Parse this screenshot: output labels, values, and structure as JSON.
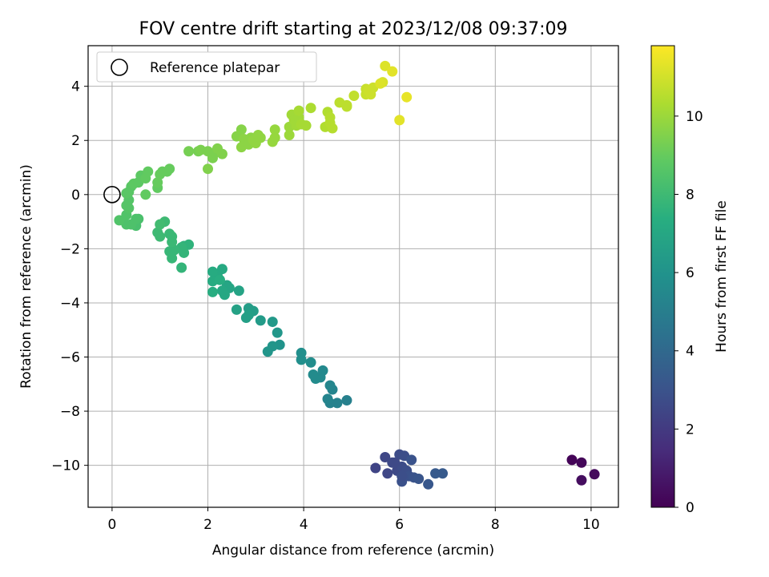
{
  "chart_data": {
    "type": "scatter",
    "title": "FOV centre drift starting at 2023/12/08 09:37:09",
    "xlabel": "Angular distance from reference (arcmin)",
    "ylabel": "Rotation from reference (arcmin)",
    "xlim": [
      -0.5,
      10.57
    ],
    "ylim": [
      -11.55,
      5.5
    ],
    "xticks": [
      0,
      2,
      4,
      6,
      8,
      10
    ],
    "yticks": [
      -10,
      -8,
      -6,
      -4,
      -2,
      0,
      2,
      4
    ],
    "xtick_labels": [
      "0",
      "2",
      "4",
      "6",
      "8",
      "10"
    ],
    "ytick_labels": [
      "−10",
      "−8",
      "−6",
      "−4",
      "−2",
      "0",
      "2",
      "4"
    ],
    "grid": true,
    "legend": {
      "position": "top-left",
      "entries": [
        "Reference platepar"
      ]
    },
    "reference_point": {
      "x": 0,
      "y": 0
    },
    "colorbar": {
      "label": "Hours from first FF file",
      "colormap": "viridis",
      "range": [
        0,
        11.8
      ],
      "ticks": [
        0,
        2,
        4,
        6,
        8,
        10
      ],
      "tick_labels": [
        "0",
        "2",
        "4",
        "6",
        "8",
        "10"
      ]
    },
    "points": [
      [
        9.6,
        -9.8,
        0.1
      ],
      [
        9.8,
        -9.9,
        0.2
      ],
      [
        10.07,
        -10.33,
        0.3
      ],
      [
        9.8,
        -10.55,
        0.4
      ],
      [
        5.5,
        -10.1,
        2.4
      ],
      [
        5.7,
        -9.7,
        2.5
      ],
      [
        5.75,
        -10.3,
        2.5
      ],
      [
        5.85,
        -9.9,
        2.6
      ],
      [
        5.95,
        -10.2,
        2.6
      ],
      [
        6.0,
        -9.6,
        2.7
      ],
      [
        6.05,
        -10.05,
        2.7
      ],
      [
        6.1,
        -9.65,
        2.8
      ],
      [
        6.15,
        -10.2,
        2.8
      ],
      [
        6.05,
        -10.6,
        2.9
      ],
      [
        6.2,
        -10.4,
        2.9
      ],
      [
        6.25,
        -9.8,
        3.0
      ],
      [
        6.3,
        -10.45,
        3.0
      ],
      [
        6.4,
        -10.5,
        3.1
      ],
      [
        6.6,
        -10.7,
        3.2
      ],
      [
        6.75,
        -10.3,
        3.3
      ],
      [
        6.9,
        -10.3,
        3.3
      ],
      [
        5.9,
        -9.9,
        2.6
      ],
      [
        6.05,
        -10.4,
        2.8
      ],
      [
        4.9,
        -7.6,
        5.1
      ],
      [
        4.7,
        -7.7,
        5.2
      ],
      [
        4.55,
        -7.7,
        5.2
      ],
      [
        4.5,
        -7.55,
        5.3
      ],
      [
        4.6,
        -7.2,
        5.3
      ],
      [
        4.55,
        -7.05,
        5.4
      ],
      [
        4.4,
        -6.5,
        5.5
      ],
      [
        4.35,
        -6.75,
        5.5
      ],
      [
        4.25,
        -6.8,
        5.6
      ],
      [
        4.2,
        -6.65,
        5.6
      ],
      [
        4.15,
        -6.2,
        5.7
      ],
      [
        3.95,
        -6.1,
        5.8
      ],
      [
        3.95,
        -5.85,
        5.8
      ],
      [
        3.5,
        -5.55,
        6.0
      ],
      [
        3.35,
        -5.6,
        6.1
      ],
      [
        3.25,
        -5.8,
        6.1
      ],
      [
        3.45,
        -5.1,
        6.2
      ],
      [
        3.35,
        -4.7,
        6.3
      ],
      [
        3.1,
        -4.65,
        6.4
      ],
      [
        2.95,
        -4.3,
        6.5
      ],
      [
        2.85,
        -4.2,
        6.5
      ],
      [
        2.85,
        -4.45,
        6.6
      ],
      [
        2.8,
        -4.55,
        6.6
      ],
      [
        2.6,
        -4.25,
        6.7
      ],
      [
        2.65,
        -3.55,
        6.8
      ],
      [
        2.45,
        -3.45,
        6.9
      ],
      [
        2.4,
        -3.35,
        6.9
      ],
      [
        2.35,
        -3.7,
        7.0
      ],
      [
        2.3,
        -3.55,
        7.0
      ],
      [
        2.3,
        -2.75,
        7.1
      ],
      [
        2.2,
        -3.0,
        7.1
      ],
      [
        2.1,
        -2.85,
        7.2
      ],
      [
        2.1,
        -3.2,
        7.2
      ],
      [
        2.1,
        -3.6,
        7.3
      ],
      [
        2.25,
        -3.15,
        7.3
      ],
      [
        1.6,
        -1.85,
        7.6
      ],
      [
        1.5,
        -1.9,
        7.6
      ],
      [
        1.45,
        -1.95,
        7.7
      ],
      [
        1.45,
        -2.7,
        7.7
      ],
      [
        1.5,
        -2.15,
        7.7
      ],
      [
        1.3,
        -2.05,
        7.8
      ],
      [
        1.25,
        -2.35,
        7.8
      ],
      [
        1.2,
        -2.1,
        7.8
      ],
      [
        1.25,
        -1.75,
        7.9
      ],
      [
        1.2,
        -1.45,
        7.9
      ],
      [
        1.25,
        -1.55,
        7.9
      ],
      [
        1.0,
        -1.55,
        8.0
      ],
      [
        0.95,
        -1.4,
        8.0
      ],
      [
        1.1,
        -1.0,
        8.0
      ],
      [
        1.0,
        -1.1,
        8.1
      ],
      [
        0.55,
        -0.9,
        8.3
      ],
      [
        0.5,
        -1.15,
        8.3
      ],
      [
        0.5,
        -0.9,
        8.4
      ],
      [
        0.4,
        -1.1,
        8.4
      ],
      [
        0.3,
        -1.1,
        8.4
      ],
      [
        0.15,
        -0.95,
        8.5
      ],
      [
        0.3,
        -0.75,
        8.5
      ],
      [
        0.35,
        -0.5,
        8.6
      ],
      [
        0.3,
        -0.4,
        8.6
      ],
      [
        0.35,
        -0.2,
        8.6
      ],
      [
        0.3,
        0.05,
        8.7
      ],
      [
        0.4,
        0.3,
        8.7
      ],
      [
        0.35,
        0.1,
        8.7
      ],
      [
        0.45,
        0.4,
        8.8
      ],
      [
        0.55,
        0.45,
        8.8
      ],
      [
        0.6,
        0.7,
        8.8
      ],
      [
        0.7,
        0.6,
        8.9
      ],
      [
        0.75,
        0.85,
        8.9
      ],
      [
        0.7,
        0.0,
        8.9
      ],
      [
        0.95,
        0.25,
        8.9
      ],
      [
        0.95,
        0.45,
        9.0
      ],
      [
        1.0,
        0.75,
        9.0
      ],
      [
        1.05,
        0.85,
        9.0
      ],
      [
        1.15,
        0.85,
        9.0
      ],
      [
        1.2,
        0.95,
        9.0
      ],
      [
        1.6,
        1.6,
        9.3
      ],
      [
        1.8,
        1.6,
        9.3
      ],
      [
        1.85,
        1.65,
        9.4
      ],
      [
        2.0,
        1.6,
        9.4
      ],
      [
        2.1,
        1.35,
        9.4
      ],
      [
        2.15,
        1.55,
        9.4
      ],
      [
        2.2,
        1.7,
        9.5
      ],
      [
        2.3,
        1.5,
        9.5
      ],
      [
        2.0,
        0.95,
        9.5
      ],
      [
        2.6,
        2.15,
        9.6
      ],
      [
        2.7,
        2.4,
        9.6
      ],
      [
        2.75,
        2.05,
        9.7
      ],
      [
        2.7,
        1.75,
        9.7
      ],
      [
        2.8,
        2.0,
        9.7
      ],
      [
        2.85,
        1.85,
        9.7
      ],
      [
        2.9,
        2.1,
        9.7
      ],
      [
        2.95,
        2.0,
        9.8
      ],
      [
        3.0,
        1.9,
        9.8
      ],
      [
        3.05,
        2.2,
        9.8
      ],
      [
        3.1,
        2.1,
        9.8
      ],
      [
        3.4,
        2.4,
        9.9
      ],
      [
        3.4,
        2.1,
        9.9
      ],
      [
        3.35,
        1.95,
        9.9
      ],
      [
        3.7,
        2.2,
        10.0
      ],
      [
        3.7,
        2.5,
        10.0
      ],
      [
        3.75,
        2.95,
        10.1
      ],
      [
        3.8,
        2.75,
        10.1
      ],
      [
        3.85,
        2.55,
        10.1
      ],
      [
        3.9,
        2.85,
        10.1
      ],
      [
        3.9,
        3.1,
        10.2
      ],
      [
        3.95,
        2.6,
        10.2
      ],
      [
        4.05,
        2.55,
        10.2
      ],
      [
        4.15,
        3.2,
        10.3
      ],
      [
        4.45,
        2.5,
        10.4
      ],
      [
        4.5,
        3.05,
        10.4
      ],
      [
        4.55,
        2.85,
        10.5
      ],
      [
        4.6,
        2.45,
        10.5
      ],
      [
        4.55,
        2.65,
        10.5
      ],
      [
        4.75,
        3.4,
        10.6
      ],
      [
        4.9,
        3.3,
        10.6
      ],
      [
        4.9,
        3.25,
        10.6
      ],
      [
        5.05,
        3.65,
        10.7
      ],
      [
        5.3,
        3.7,
        10.8
      ],
      [
        5.3,
        3.9,
        10.8
      ],
      [
        5.35,
        3.85,
        10.9
      ],
      [
        5.4,
        3.7,
        10.9
      ],
      [
        5.45,
        3.95,
        10.9
      ],
      [
        5.65,
        4.15,
        11.1
      ],
      [
        5.7,
        4.75,
        11.2
      ],
      [
        5.85,
        4.55,
        11.3
      ],
      [
        6.0,
        2.75,
        11.3
      ],
      [
        6.15,
        3.6,
        11.4
      ],
      [
        5.6,
        4.1,
        11.2
      ]
    ]
  }
}
